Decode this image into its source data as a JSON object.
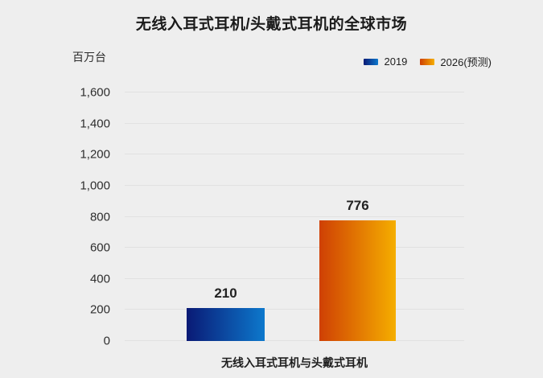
{
  "chart": {
    "title": "无线入耳式耳机/头戴式耳机的全球市场",
    "unit_label": "百万台",
    "x_category_label": "无线入耳式耳机与头戴式耳机"
  },
  "chart_data": {
    "type": "bar",
    "title": "无线入耳式耳机/头戴式耳机的全球市场",
    "ylabel": "百万台",
    "xlabel": "",
    "categories": [
      "无线入耳式耳机与头戴式耳机"
    ],
    "series": [
      {
        "name": "2019",
        "values": [
          210
        ],
        "gradient": [
          "#0a1a75",
          "#0d78cc"
        ]
      },
      {
        "name": "2026(预测)",
        "values": [
          776
        ],
        "gradient": [
          "#cf4004",
          "#f5ae00"
        ]
      }
    ],
    "ylim": [
      0,
      1600
    ],
    "ytick_interval": 200,
    "ytick_labels": [
      "0",
      "200",
      "400",
      "600",
      "800",
      "1,000",
      "1,200",
      "1,400",
      "1,600"
    ],
    "grid": true,
    "legend_position": "top-right",
    "value_labels_shown": true
  },
  "colors": {
    "background": "#eeeeee",
    "gridline": "#e1e1e1",
    "title_text": "#1b1b1b",
    "axis_text": "#2e2e2e",
    "value_label_text": "#222222"
  }
}
